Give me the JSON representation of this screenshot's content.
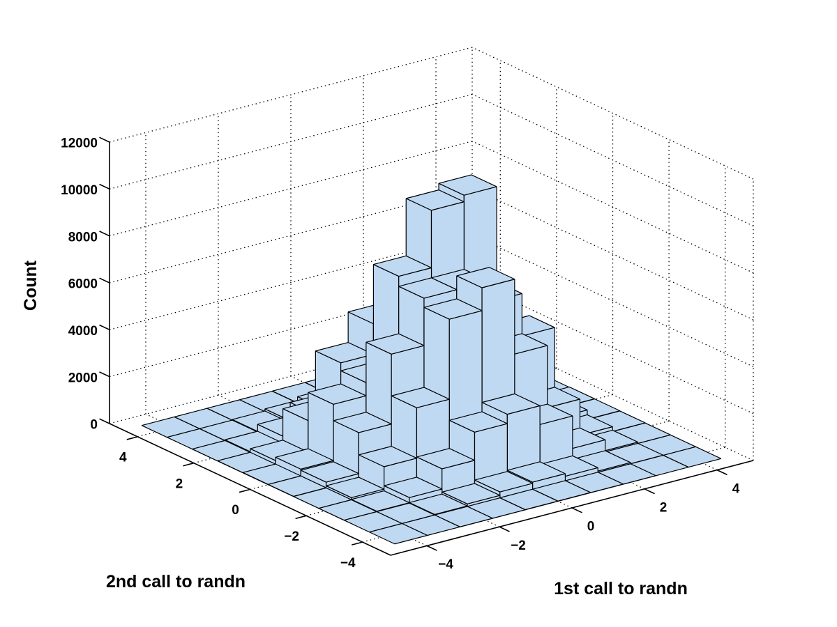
{
  "chart_data": {
    "type": "bar",
    "subtype": "3d-histogram",
    "title": "",
    "xlabel": "1st call to randn",
    "ylabel": "2nd call to randn",
    "zlabel": "Count",
    "x_ticks": [
      -4,
      -2,
      0,
      2,
      4
    ],
    "y_ticks": [
      -4,
      -2,
      0,
      2,
      4
    ],
    "z_ticks": [
      0,
      2000,
      4000,
      6000,
      8000,
      10000,
      12000
    ],
    "xlim": [
      -5,
      5
    ],
    "ylim": [
      -5,
      5
    ],
    "zlim": [
      0,
      12000
    ],
    "grid": "dotted",
    "legend": "none",
    "view": {
      "azimuth": -37.5,
      "elevation": 30,
      "projection": "orthographic"
    },
    "bar_face_color": "#BFD9F2",
    "bar_edge_color": "#000000",
    "background_color": "#FFFFFF",
    "bin_width": 0.9,
    "bin_x_centers": [
      -4.05,
      -3.15,
      -2.25,
      -1.35,
      -0.45,
      0.45,
      1.35,
      2.25,
      3.15,
      4.05
    ],
    "bin_y_centers": [
      -4.05,
      -3.15,
      -2.25,
      -1.35,
      -0.45,
      0.45,
      1.35,
      2.25,
      3.15,
      4.05
    ],
    "counts_note": "rows = y bins (2nd call, front -4.05 to back +4.05); cols = x bins (1st call, -4.05 to +4.05)",
    "counts": [
      [
        0,
        0,
        1,
        3,
        8,
        10,
        7,
        2,
        0,
        0
      ],
      [
        0,
        3,
        25,
        110,
        260,
        310,
        200,
        55,
        6,
        0
      ],
      [
        1,
        20,
        240,
        1100,
        2300,
        2700,
        1900,
        520,
        60,
        3
      ],
      [
        3,
        95,
        1050,
        3200,
        6610,
        7590,
        4400,
        1750,
        210,
        10
      ],
      [
        8,
        250,
        2000,
        4980,
        7000,
        7000,
        6110,
        4300,
        420,
        20
      ],
      [
        10,
        300,
        2700,
        3260,
        7430,
        9880,
        10160,
        3900,
        480,
        25
      ],
      [
        6,
        160,
        1500,
        3600,
        4900,
        5400,
        4600,
        2100,
        260,
        12
      ],
      [
        2,
        35,
        330,
        900,
        1900,
        2300,
        1700,
        600,
        70,
        4
      ],
      [
        0,
        4,
        30,
        120,
        280,
        330,
        240,
        65,
        8,
        0
      ],
      [
        0,
        0,
        2,
        5,
        12,
        14,
        9,
        3,
        1,
        0
      ]
    ]
  }
}
